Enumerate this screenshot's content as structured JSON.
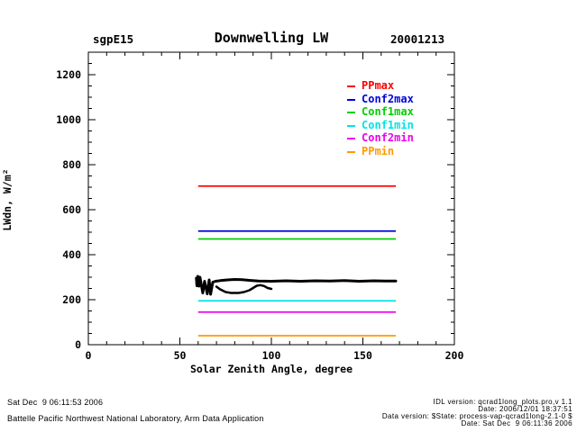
{
  "header": {
    "site": "sgpE15",
    "title": "Downwelling LW",
    "date": "20001213"
  },
  "chart_data": {
    "type": "line",
    "title": "Downwelling LW",
    "xlabel": "Solar Zenith Angle, degree",
    "ylabel": "LWdn, W/m²",
    "xlim": [
      0,
      200
    ],
    "ylim": [
      0,
      1300
    ],
    "grid": false,
    "legend_position": "upper-right-inside",
    "xticks_major": [
      0,
      50,
      100,
      150,
      200
    ],
    "xtick_labels": [
      "0",
      "50",
      "100",
      "150",
      "200"
    ],
    "x_minor_step": 10,
    "yticks_major": [
      0,
      200,
      400,
      600,
      800,
      1000,
      1200
    ],
    "ytick_labels": [
      "0",
      "200",
      "400",
      "600",
      "800",
      "1000",
      "1200"
    ],
    "y_minor_step": 50,
    "limit_lines": [
      {
        "name": "PPmax",
        "color": "#ff0000",
        "y": 705,
        "x_start": 60,
        "x_end": 168
      },
      {
        "name": "Conf2max",
        "color": "#0000dd",
        "y": 505,
        "x_start": 60,
        "x_end": 168
      },
      {
        "name": "Conf1max",
        "color": "#00cf00",
        "y": 470,
        "x_start": 60,
        "x_end": 168
      },
      {
        "name": "Conf1min",
        "color": "#00e4e4",
        "y": 195,
        "x_start": 60,
        "x_end": 168
      },
      {
        "name": "Conf2min",
        "color": "#ee00ee",
        "y": 145,
        "x_start": 60,
        "x_end": 168
      },
      {
        "name": "PPmin",
        "color": "#ff9900",
        "y": 40,
        "x_start": 60,
        "x_end": 168
      }
    ],
    "measured_series": {
      "name": "LWdn measured",
      "color": "#000000",
      "branches": [
        {
          "width": 3,
          "points": [
            [
              59,
              296
            ],
            [
              59.3,
              262
            ],
            [
              59.8,
              304
            ],
            [
              60.5,
              260
            ],
            [
              61,
              300
            ],
            [
              62.5,
              230
            ],
            [
              63.5,
              282
            ],
            [
              65,
              226
            ],
            [
              66,
              288
            ],
            [
              66.8,
              224
            ],
            [
              68,
              278
            ],
            [
              69.5,
              282
            ],
            [
              72,
              285
            ],
            [
              76,
              288
            ],
            [
              80,
              290
            ],
            [
              84,
              289
            ],
            [
              88,
              286
            ],
            [
              93,
              283
            ],
            [
              100,
              282
            ],
            [
              108,
              284
            ],
            [
              116,
              282
            ],
            [
              124,
              284
            ],
            [
              132,
              283
            ],
            [
              140,
              285
            ],
            [
              148,
              282
            ],
            [
              156,
              284
            ],
            [
              162,
              283
            ],
            [
              168,
              283
            ]
          ]
        },
        {
          "width": 2.5,
          "points": [
            [
              70,
              258
            ],
            [
              72,
              246
            ],
            [
              75,
              234
            ],
            [
              78,
              230
            ],
            [
              82,
              230
            ],
            [
              85,
              234
            ],
            [
              88,
              242
            ],
            [
              90,
              252
            ],
            [
              92,
              262
            ],
            [
              94,
              265
            ],
            [
              96,
              261
            ],
            [
              98,
              252
            ],
            [
              100,
              248
            ]
          ]
        }
      ]
    }
  },
  "legend": {
    "items": [
      {
        "label": "PPmax",
        "color": "#ff0000"
      },
      {
        "label": "Conf2max",
        "color": "#0000dd"
      },
      {
        "label": "Conf1max",
        "color": "#00cf00"
      },
      {
        "label": "Conf1min",
        "color": "#00e4e4"
      },
      {
        "label": "Conf2min",
        "color": "#ee00ee"
      },
      {
        "label": "PPmin",
        "color": "#ff9900"
      }
    ]
  },
  "footer_left": {
    "line1": "Sat Dec  9 06:11:53 2006",
    "line2": "Battelle Pacific Northwest National Laboratory, Arm Data Application"
  },
  "footer_right": {
    "line1": "IDL version: qcrad1long_plots.pro,v 1.1",
    "line2": "Date: 2006/12/01 18:37:51",
    "line3": "Data version: $State: process-vap-qcrad1long-2.1-0 $",
    "line4": "Date: Sat Dec  9 06:11:36 2006"
  }
}
